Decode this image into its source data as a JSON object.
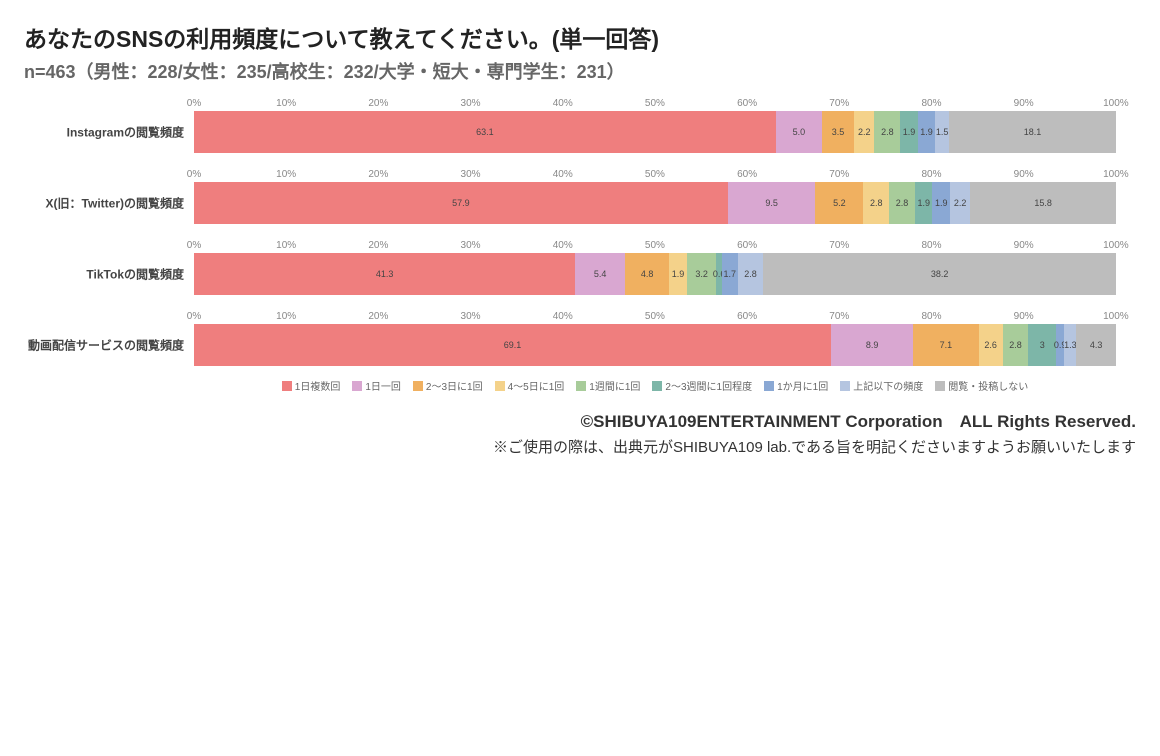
{
  "title": "あなたのSNSの利用頻度について教えてください。(単一回答)",
  "subtitle": "n=463（男性：228/女性：235/高校生：232/大学・短大・専門学生：231）",
  "axis_ticks": [
    "0%",
    "10%",
    "20%",
    "30%",
    "40%",
    "50%",
    "60%",
    "70%",
    "80%",
    "90%",
    "100%"
  ],
  "colors": [
    "#ef7e7e",
    "#d9a7d1",
    "#f0b060",
    "#f4d28a",
    "#a8cc9a",
    "#7db6a8",
    "#8aa8d4",
    "#b5c5e0",
    "#bdbdbd"
  ],
  "legend": [
    "1日複数回",
    "1日一回",
    "2～3日に1回",
    "4～5日に1回",
    "1週間に1回",
    "2～3週間に1回程度",
    "1か月に1回",
    "上記以下の頻度",
    "閲覧・投稿しない"
  ],
  "rows": [
    {
      "label": "Instagramの閲覧頻度",
      "values": [
        63.1,
        5.0,
        3.5,
        2.2,
        2.8,
        1.9,
        1.9,
        1.5,
        18.1
      ]
    },
    {
      "label": "X(旧：Twitter)の閲覧頻度",
      "values": [
        57.9,
        9.5,
        5.2,
        2.8,
        2.8,
        1.9,
        1.9,
        2.2,
        15.8
      ]
    },
    {
      "label": "TikTokの閲覧頻度",
      "values": [
        41.3,
        5.4,
        4.8,
        1.9,
        3.2,
        0.6,
        1.7,
        2.8,
        38.2
      ]
    },
    {
      "label": "動画配信サービスの閲覧頻度",
      "values": [
        69.1,
        8.9,
        7.1,
        2.6,
        2.8,
        3.0,
        0.9,
        1.3,
        4.3
      ]
    }
  ],
  "footer1": "©SHIBUYA109ENTERTAINMENT Corporation　ALL Rights Reserved.",
  "footer2": "※ご使用の際は、出典元がSHIBUYA109 lab.である旨を明記くださいますようお願いいたします"
}
